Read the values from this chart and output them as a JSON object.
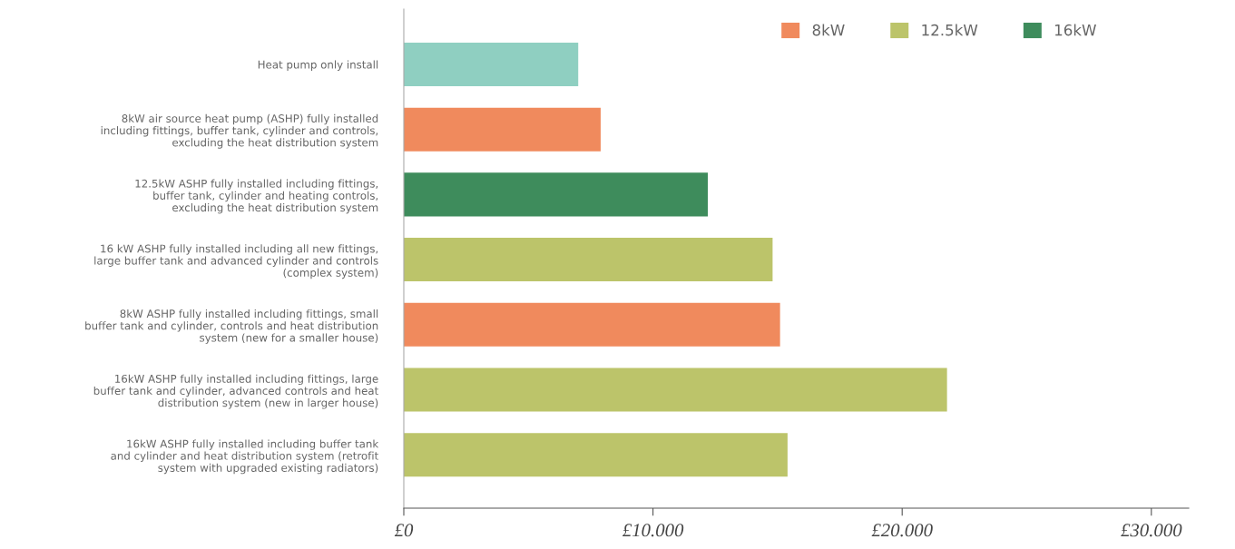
{
  "chart_data": {
    "type": "bar",
    "orientation": "horizontal",
    "categories": [
      "Heat pump only install",
      "8kW air source heat pump (ASHP) fully installed\nincluding fittings, buffer tank, cylinder and controls,\nexcluding the heat distribution system",
      "12.5kW ASHP fully installed including fittings,\nbuffer tank, cylinder and heating controls,\nexcluding the heat distribution system",
      "16 kW ASHP fully installed including all new fittings,\nlarge buffer tank and advanced cylinder and controls\n(complex system)",
      "8kW ASHP fully installed including fittings, small\nbuffer tank and cylinder, controls and heat distribution\nsystem (new for a smaller house)",
      "16kW ASHP fully installed including fittings, large\nbuffer tank and cylinder, advanced controls and heat\ndistribution system (new in larger house)",
      "16kW ASHP fully installed including buffer tank\nand cylinder and heat distribution system (retrofit\nsystem with upgraded existing radiators)"
    ],
    "series": [
      {
        "color": "#8fcfc1",
        "values": [
          7.0,
          null,
          null,
          null,
          null,
          null,
          null
        ]
      },
      {
        "name": "8kW",
        "color": "#f08a5d",
        "values": [
          null,
          7.9,
          null,
          null,
          15.1,
          null,
          null
        ]
      },
      {
        "name": "12.5kW",
        "color": "#bcc46a",
        "values": [
          null,
          null,
          null,
          14.8,
          null,
          21.8,
          15.4
        ]
      },
      {
        "name": "16kW",
        "color": "#3e8c5c",
        "values": [
          null,
          null,
          12.2,
          null,
          null,
          null,
          null
        ]
      }
    ],
    "xlim": [
      0,
      31.5
    ],
    "xticks": [
      {
        "value": 0,
        "label": "£0"
      },
      {
        "value": 10,
        "label": "£10.000"
      },
      {
        "value": 20,
        "label": "£20.000"
      },
      {
        "value": 30,
        "label": "£30.000"
      }
    ],
    "grid": false,
    "legend": "top right"
  }
}
